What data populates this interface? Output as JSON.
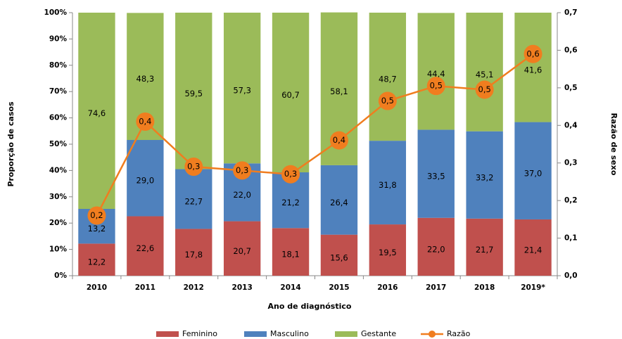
{
  "chart_data": {
    "type": "bar",
    "stacked": true,
    "categories": [
      "2010",
      "2011",
      "2012",
      "2013",
      "2014",
      "2015",
      "2016",
      "2017",
      "2018",
      "2019*"
    ],
    "series": [
      {
        "name": "Feminino",
        "color": "#c0504d",
        "values": [
          12.2,
          22.6,
          17.8,
          20.7,
          18.1,
          15.6,
          19.5,
          22.0,
          21.7,
          21.4
        ],
        "value_labels": [
          "12,2",
          "22,6",
          "17,8",
          "20,7",
          "18,1",
          "15,6",
          "19,5",
          "22,0",
          "21,7",
          "21,4"
        ]
      },
      {
        "name": "Masculino",
        "color": "#4f81bd",
        "values": [
          13.2,
          29.0,
          22.7,
          22.0,
          21.2,
          26.4,
          31.8,
          33.5,
          33.2,
          37.0
        ],
        "value_labels": [
          "13,2",
          "29,0",
          "22,7",
          "22,0",
          "21,2",
          "26,4",
          "31,8",
          "33,5",
          "33,2",
          "37,0"
        ]
      },
      {
        "name": "Gestante",
        "color": "#9bbb59",
        "values": [
          74.6,
          48.3,
          59.5,
          57.3,
          60.7,
          58.1,
          48.7,
          44.4,
          45.1,
          41.6
        ],
        "value_labels": [
          "74,6",
          "48,3",
          "59,5",
          "57,3",
          "60,7",
          "58,1",
          "48,7",
          "44,4",
          "45,1",
          "41,6"
        ]
      },
      {
        "name": "Razão",
        "color": "#f07d1f",
        "type": "line",
        "axis": "y2",
        "values": [
          0.16,
          0.41,
          0.29,
          0.28,
          0.27,
          0.36,
          0.465,
          0.505,
          0.495,
          0.59
        ],
        "value_labels": [
          "0,2",
          "0,4",
          "0,3",
          "0,3",
          "0,3",
          "0,4",
          "0,5",
          "0,5",
          "0,5",
          "0,6"
        ]
      }
    ],
    "xlabel": "Ano de diagnóstico",
    "ylabel": "Proporção de casos",
    "y2label": "Razão de sexo",
    "ylim": [
      0,
      100
    ],
    "yticks": [
      {
        "value": 0,
        "label": "0%"
      },
      {
        "value": 10,
        "label": "10%"
      },
      {
        "value": 20,
        "label": "20%"
      },
      {
        "value": 30,
        "label": "30%"
      },
      {
        "value": 40,
        "label": "40%"
      },
      {
        "value": 50,
        "label": "50%"
      },
      {
        "value": 60,
        "label": "60%"
      },
      {
        "value": 70,
        "label": "70%"
      },
      {
        "value": 80,
        "label": "80%"
      },
      {
        "value": 90,
        "label": "90%"
      },
      {
        "value": 100,
        "label": "100%"
      }
    ],
    "y2lim": [
      0,
      0.7
    ],
    "y2ticks": [
      {
        "value": 0,
        "label": "0,0"
      },
      {
        "value": 0.1,
        "label": "0,1"
      },
      {
        "value": 0.2,
        "label": "0,2"
      },
      {
        "value": 0.3,
        "label": "0,3"
      },
      {
        "value": 0.4,
        "label": "0,4"
      },
      {
        "value": 0.5,
        "label": "0,5"
      },
      {
        "value": 0.6,
        "label": "0,6"
      },
      {
        "value": 0.7,
        "label": "0,7"
      }
    ],
    "legend": "bottom",
    "grid": false
  }
}
